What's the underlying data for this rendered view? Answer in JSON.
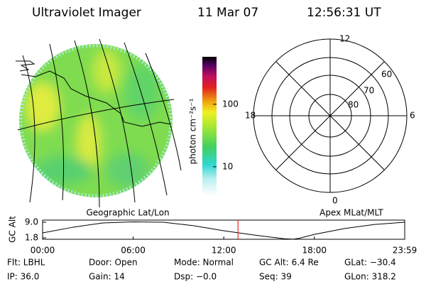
{
  "header": {
    "instrument": "Ultraviolet Imager",
    "date": "11 Mar 07",
    "time": "12:56:31 UT"
  },
  "image_panel": {
    "colorbar": {
      "label": "photon cm⁻²s⁻¹",
      "log": true,
      "clim": [
        3.5,
        575
      ],
      "ticks": [
        10,
        100
      ]
    }
  },
  "polar_panel": {
    "mlt_labels": [
      "12",
      "18",
      "6",
      "0"
    ],
    "lat_labels": [
      "60",
      "70",
      "80"
    ]
  },
  "orbit_plot": {
    "ylabel": "GC Alt",
    "left_title": "Geographic Lat/Lon",
    "right_title": "Apex MLat/MLT",
    "x": [
      0,
      2,
      4,
      6,
      8,
      10,
      12,
      14,
      16,
      16.6,
      17,
      18,
      20,
      22,
      23.983
    ],
    "values": [
      4.1,
      6.7,
      8.7,
      9.2,
      9.0,
      7.4,
      5.1,
      3.1,
      1.4,
      1.2,
      1.6,
      3.4,
      6.1,
      8.0,
      9.0
    ],
    "xlim": [
      0,
      23.983
    ],
    "ylim": [
      1.15,
      10.0
    ],
    "xticks": [
      {
        "value": 0,
        "label": "00:00"
      },
      {
        "value": 6,
        "label": "06:00"
      },
      {
        "value": 12,
        "label": "12:00"
      },
      {
        "value": 18,
        "label": "18:00"
      },
      {
        "value": 23.983,
        "label": "23:59"
      }
    ],
    "yticks": [
      {
        "value": 9,
        "label": "9.0"
      },
      1.8
    ],
    "marker_x": 12.942,
    "line_color": "#000000",
    "marker_color": "#e00000"
  },
  "status": {
    "rows": [
      [
        "Flt: LBHL",
        "Door: Open",
        "Mode: Normal",
        "GC Alt: 6.4 Re",
        "GLat: −30.4"
      ],
      [
        "IP: 36.0",
        "Gain: 14",
        "Dsp:  −0.0",
        "Seq: 39",
        "GLon: 318.2"
      ]
    ]
  }
}
